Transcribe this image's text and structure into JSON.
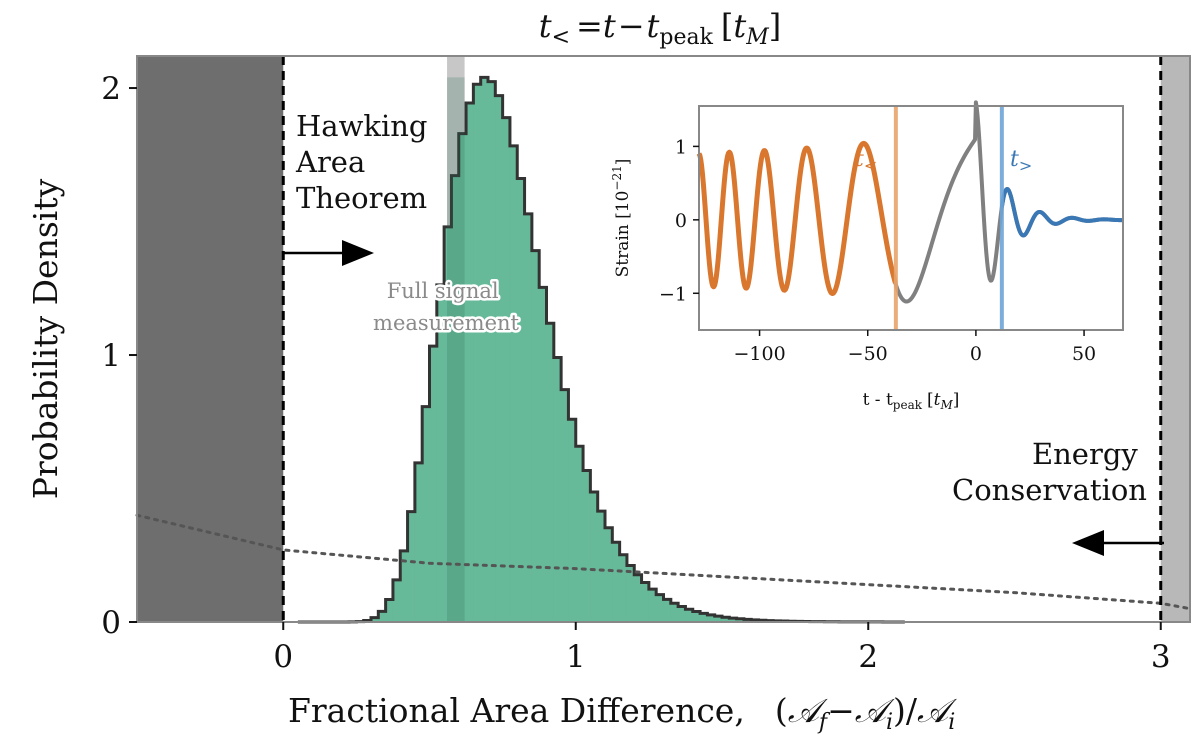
{
  "chart_data": [
    {
      "type": "histogram",
      "title_parts": {
        "t": "t",
        "less": "<",
        "eq": "=",
        "tt": "t",
        "minus": "−",
        "peak_t": "t",
        "peak_sub": "peak",
        "unit_open": "[",
        "unit_t": "t",
        "unit_sub": "M",
        "unit_close": "]"
      },
      "xlabel_text": "Fractional Area Difference,",
      "xlabel_formula": {
        "open": "(",
        "A1": "𝒜",
        "f": "f",
        "minus": "−",
        "A2": "𝒜",
        "i1": "i",
        "close": ")/",
        "A3": "𝒜",
        "i2": "i"
      },
      "ylabel": "Probability Density",
      "xlim": [
        -0.5,
        3.1
      ],
      "ylim": [
        0,
        2.12
      ],
      "xticks": [
        "0",
        "1",
        "2",
        "3"
      ],
      "xtick_values": [
        0,
        1,
        2,
        3
      ],
      "yticks": [
        "0",
        "1",
        "2"
      ],
      "ytick_values": [
        0,
        1,
        2
      ],
      "histogram": {
        "name": "posterior",
        "bin_width": 0.025,
        "bins_start": 0.05,
        "mode": 0.69,
        "peak_density": 2.04
      },
      "prior_curve": {
        "name": "prior",
        "x": [
          -0.5,
          0,
          0.5,
          1,
          1.5,
          2,
          2.5,
          3,
          3.1
        ],
        "y": [
          0.4,
          0.27,
          0.22,
          0.2,
          0.17,
          0.14,
          0.11,
          0.07,
          0.05
        ]
      },
      "excluded_regions": [
        {
          "name": "hawking-excluded",
          "from": -0.5,
          "to": 0,
          "color": "#6e6e6e"
        },
        {
          "name": "energy-excluded",
          "from": 3,
          "to": 3.1,
          "color": "#b8b8b8"
        }
      ],
      "bound_lines": [
        0,
        3
      ],
      "full_signal_band": [
        0.56,
        0.62
      ],
      "annotations": {
        "hawking": [
          "Hawking",
          "Area",
          "Theorem"
        ],
        "energy": [
          "Energy",
          "Conservation"
        ],
        "full_signal": [
          "Full signal",
          "measurement"
        ]
      },
      "colors": {
        "histogram": "#66b999",
        "outline": "#333333",
        "band": "#999999"
      }
    },
    {
      "type": "line",
      "name": "strain-inset",
      "xlabel": {
        "prefix": "t - t",
        "sub": "peak",
        "open": "[",
        "t": "t",
        "msub": "M",
        "close": "]"
      },
      "ylabel": {
        "main": "Strain [10",
        "sup": "−21",
        "close": "]"
      },
      "xlim": [
        -128,
        68
      ],
      "ylim": [
        -1.5,
        1.55
      ],
      "xticks": [
        "−100",
        "−50",
        "0",
        "50"
      ],
      "xtick_values": [
        -100,
        -50,
        0,
        50
      ],
      "yticks": [
        "−1",
        "0",
        "1"
      ],
      "ytick_values": [
        -1,
        0,
        1
      ],
      "series": [
        {
          "name": "full-waveform",
          "color": "#808080"
        },
        {
          "name": "pre-merger t<",
          "color": "#d9772e",
          "until": -37
        },
        {
          "name": "post-merger t>",
          "color": "#3a78b5",
          "from": 12
        }
      ],
      "markers": [
        {
          "label": "t",
          "sub": "<",
          "x": -37,
          "color": "#e8a46b"
        },
        {
          "label": "t",
          "sub": ">",
          "x": 12,
          "color": "#6fa5d6"
        }
      ]
    }
  ]
}
